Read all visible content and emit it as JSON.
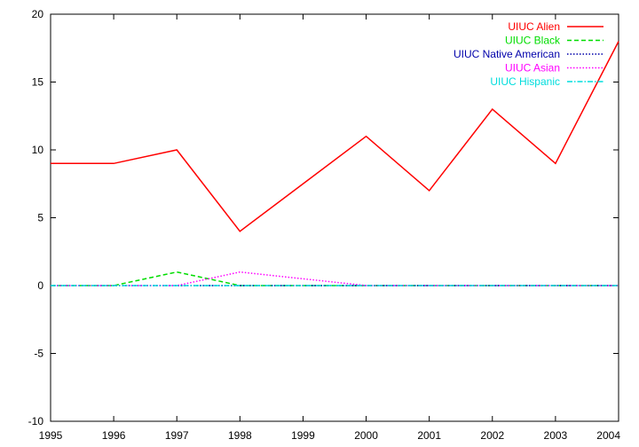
{
  "chart_data": {
    "type": "line",
    "title": "",
    "xlabel": "",
    "ylabel": "",
    "x": [
      1995,
      1996,
      1997,
      1998,
      1999,
      2000,
      2001,
      2002,
      2003,
      2004
    ],
    "xlim": [
      1995,
      2004
    ],
    "ylim": [
      -10,
      20
    ],
    "xticks": [
      "1995",
      "1996",
      "1997",
      "1998",
      "1999",
      "2000",
      "2001",
      "2002",
      "2003",
      "2004"
    ],
    "yticks": [
      "-10",
      "-5",
      "0",
      "5",
      "10",
      "15",
      "20"
    ],
    "grid": false,
    "legend_position": "top-right",
    "series": [
      {
        "name": "UIUC Alien",
        "color": "#ff0000",
        "dash": "solid",
        "values": [
          9,
          9,
          10,
          4,
          7.5,
          11,
          7,
          13,
          9,
          18
        ]
      },
      {
        "name": "UIUC Black",
        "color": "#00dd00",
        "dash": "dashed",
        "values": [
          0,
          0,
          1,
          0,
          0,
          0,
          0,
          0,
          0,
          0
        ]
      },
      {
        "name": "UIUC Native American",
        "color": "#0000aa",
        "dash": "dotted",
        "values": [
          0,
          0,
          0,
          0,
          0,
          0,
          0,
          0,
          0,
          0
        ]
      },
      {
        "name": "UIUC Asian",
        "color": "#ff00ff",
        "dash": "dotted",
        "values": [
          0,
          0,
          0,
          1,
          0.5,
          0,
          0,
          0,
          0,
          0
        ]
      },
      {
        "name": "UIUC Hispanic",
        "color": "#00dddd",
        "dash": "dashdot",
        "values": [
          0,
          0,
          0,
          0,
          0,
          0,
          0,
          0,
          0,
          0
        ]
      }
    ]
  }
}
